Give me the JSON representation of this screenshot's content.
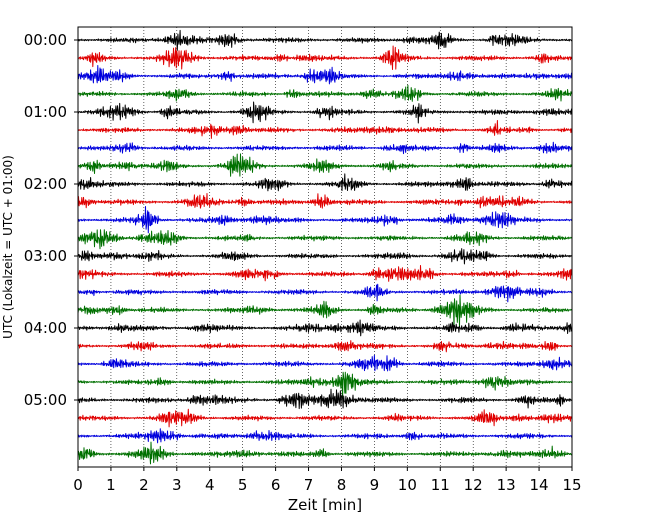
{
  "chart_data": {
    "type": "line",
    "subtype": "helicorder",
    "title": "",
    "xlabel": "Zeit  [min]",
    "ylabel": "UTC (Lokalzeit = UTC + 01:00)",
    "xlim": [
      0,
      15
    ],
    "x_ticks": [
      "0",
      "1",
      "2",
      "3",
      "4",
      "5",
      "6",
      "7",
      "8",
      "9",
      "10",
      "11",
      "12",
      "13",
      "14",
      "15"
    ],
    "y_tick_labels": [
      "00:00",
      "01:00",
      "02:00",
      "03:00",
      "04:00",
      "05:00"
    ],
    "rows_per_hour": 4,
    "trace_colors": [
      "#000000",
      "#e00000",
      "#0000dd",
      "#007000"
    ],
    "grid": "vertical dotted at each minute",
    "traces": [
      {
        "start": "00:00"
      },
      {
        "start": "00:15"
      },
      {
        "start": "00:30"
      },
      {
        "start": "00:45"
      },
      {
        "start": "01:00"
      },
      {
        "start": "01:15"
      },
      {
        "start": "01:30"
      },
      {
        "start": "01:45"
      },
      {
        "start": "02:00"
      },
      {
        "start": "02:15"
      },
      {
        "start": "02:30"
      },
      {
        "start": "02:45"
      },
      {
        "start": "03:00"
      },
      {
        "start": "03:15"
      },
      {
        "start": "03:30"
      },
      {
        "start": "03:45"
      },
      {
        "start": "04:00"
      },
      {
        "start": "04:15"
      },
      {
        "start": "04:30"
      },
      {
        "start": "04:45"
      },
      {
        "start": "05:00"
      },
      {
        "start": "05:15"
      },
      {
        "start": "05:30"
      },
      {
        "start": "05:45"
      }
    ]
  }
}
